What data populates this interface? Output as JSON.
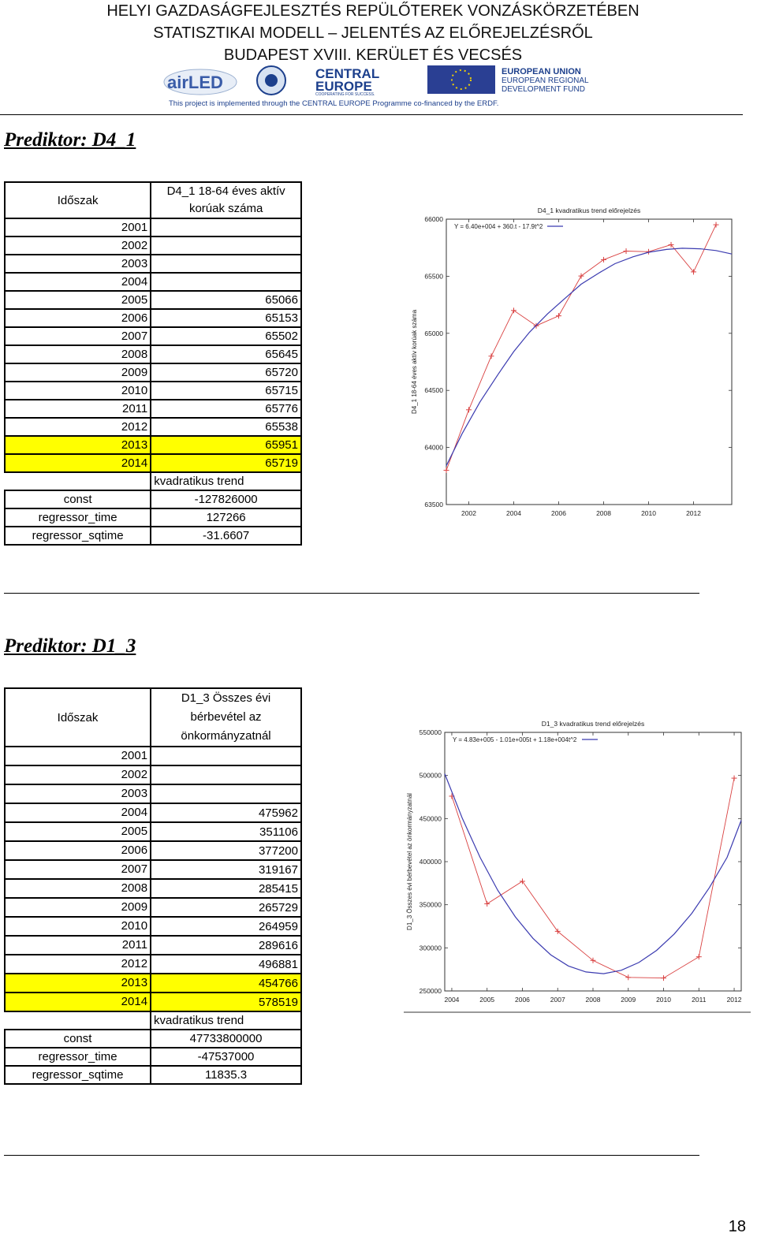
{
  "header": {
    "line1": "HELYI GAZDASÁGFEJLESZTÉS REPÜLŐTEREK VONZÁSKÖRZETÉBEN",
    "line2": "STATISZTIKAI MODELL – JELENTÉS AZ ELŐREJELZÉSRŐL",
    "line3": "BUDAPEST XVIII. KERÜLET ÉS VECSÉS",
    "logo_airled": "airLED",
    "logo_central": "CENTRAL",
    "logo_europe": "EUROPE",
    "logo_central_tag": "COOPERATING FOR SUCCESS.",
    "eu_line1": "EUROPEAN UNION",
    "eu_line2": "EUROPEAN REGIONAL",
    "eu_line3": "DEVELOPMENT FUND",
    "project_note": "This project is implemented through the CENTRAL EUROPE Programme co-financed by the ERDF."
  },
  "section1": {
    "title": "Prediktor: D4_1",
    "table": {
      "col1_header": "Időszak",
      "col2_header_line1": "D4_1 18-64 éves aktív",
      "col2_header_line2": "korúak száma",
      "rows": [
        {
          "year": "2001",
          "value": ""
        },
        {
          "year": "2002",
          "value": ""
        },
        {
          "year": "2003",
          "value": ""
        },
        {
          "year": "2004",
          "value": ""
        },
        {
          "year": "2005",
          "value": "65066"
        },
        {
          "year": "2006",
          "value": "65153"
        },
        {
          "year": "2007",
          "value": "65502"
        },
        {
          "year": "2008",
          "value": "65645"
        },
        {
          "year": "2009",
          "value": "65720"
        },
        {
          "year": "2010",
          "value": "65715"
        },
        {
          "year": "2011",
          "value": "65776"
        },
        {
          "year": "2012",
          "value": "65538"
        },
        {
          "year": "2013",
          "value": "65951"
        },
        {
          "year": "2014",
          "value": "65719"
        }
      ],
      "trend_label": "kvadratikus trend",
      "coeffs": [
        {
          "name": "const",
          "value": "-127826000"
        },
        {
          "name": "regressor_time",
          "value": "127266"
        },
        {
          "name": "regressor_sqtime",
          "value": "-31.6607"
        }
      ]
    }
  },
  "section2": {
    "title": "Prediktor: D1_3",
    "table": {
      "col1_header": "Időszak",
      "col2_header_line1": "D1_3 Összes évi",
      "col2_header_line2": "bérbevétel az",
      "col2_header_line3": "önkormányzatnál",
      "rows": [
        {
          "year": "2001",
          "value": ""
        },
        {
          "year": "2002",
          "value": ""
        },
        {
          "year": "2003",
          "value": ""
        },
        {
          "year": "2004",
          "value": "475962"
        },
        {
          "year": "2005",
          "value": "351106"
        },
        {
          "year": "2006",
          "value": "377200"
        },
        {
          "year": "2007",
          "value": "319167"
        },
        {
          "year": "2008",
          "value": "285415"
        },
        {
          "year": "2009",
          "value": "265729"
        },
        {
          "year": "2010",
          "value": "264959"
        },
        {
          "year": "2011",
          "value": "289616"
        },
        {
          "year": "2012",
          "value": "496881"
        },
        {
          "year": "2013",
          "value": "454766"
        },
        {
          "year": "2014",
          "value": "578519"
        }
      ],
      "trend_label": "kvadratikus trend",
      "coeffs": [
        {
          "name": "const",
          "value": "47733800000"
        },
        {
          "name": "regressor_time",
          "value": "-47537000"
        },
        {
          "name": "regressor_sqtime",
          "value": "11835.3"
        }
      ]
    }
  },
  "chart_data": [
    {
      "type": "line",
      "title": "D4_1 kvadratikus trend előrejelzés",
      "ylabel": "D4_1 18-64 éves aktív korúak száma",
      "xlabel": "",
      "legend": "Y = 6.40e+004 + 360.t - 17.9t^2",
      "legend_position": "top-left",
      "xlim": [
        2001,
        2013.7
      ],
      "ylim": [
        63500,
        66000
      ],
      "xticks": [
        2002,
        2004,
        2006,
        2008,
        2010,
        2012
      ],
      "yticks": [
        63500,
        64000,
        64500,
        65000,
        65500,
        66000
      ],
      "series": [
        {
          "x": [
            2001,
            2002,
            2003,
            2004,
            2005,
            2006,
            2007,
            2008,
            2009,
            2010,
            2011,
            2012,
            2013
          ],
          "y": [
            63800,
            64330,
            64800,
            65200,
            65066,
            65153,
            65502,
            65645,
            65720,
            65715,
            65776,
            65538,
            65951
          ],
          "color": "#d94040",
          "marker": "+"
        },
        {
          "x": [
            2001,
            2001.7,
            2002.5,
            2003.3,
            2004,
            2004.7,
            2005.5,
            2006.3,
            2007,
            2007.8,
            2008.5,
            2009.3,
            2010,
            2010.8,
            2011.5,
            2012.3,
            2013,
            2013.7
          ],
          "y": [
            63840,
            64120,
            64400,
            64640,
            64840,
            65010,
            65170,
            65310,
            65430,
            65530,
            65610,
            65670,
            65710,
            65735,
            65745,
            65740,
            65725,
            65695
          ],
          "color": "#3b3bb0"
        }
      ]
    },
    {
      "type": "line",
      "title": "D1_3 kvadratikus trend előrejelzés",
      "ylabel": "D1_3 Összes évi bérbevétel az önkormányzatnál",
      "xlabel": "",
      "legend": "Y = 4.83e+005 - 1.01e+005t + 1.18e+004t^2",
      "legend_position": "top-left",
      "xlim": [
        2003.8,
        2012.2
      ],
      "ylim": [
        250000,
        550000
      ],
      "xticks": [
        2004,
        2005,
        2006,
        2007,
        2008,
        2009,
        2010,
        2011,
        2012
      ],
      "yticks": [
        250000,
        300000,
        350000,
        400000,
        450000,
        500000,
        550000
      ],
      "series": [
        {
          "x": [
            2004,
            2005,
            2006,
            2007,
            2008,
            2009,
            2010,
            2011,
            2012
          ],
          "y": [
            475962,
            351106,
            377200,
            319167,
            285415,
            265729,
            264959,
            289616,
            496881
          ],
          "color": "#d94040",
          "marker": "+"
        },
        {
          "x": [
            2003.8,
            2004.3,
            2004.8,
            2005.3,
            2005.8,
            2006.3,
            2006.8,
            2007.3,
            2007.8,
            2008.3,
            2008.8,
            2009.3,
            2009.8,
            2010.3,
            2010.8,
            2011.3,
            2011.8,
            2012.2
          ],
          "y": [
            502000,
            450000,
            405000,
            367000,
            336000,
            311000,
            292000,
            279000,
            272000,
            270000,
            274000,
            283000,
            297000,
            316000,
            340000,
            370000,
            405000,
            448000
          ],
          "color": "#3b3bb0"
        }
      ]
    }
  ],
  "page_number": "18"
}
